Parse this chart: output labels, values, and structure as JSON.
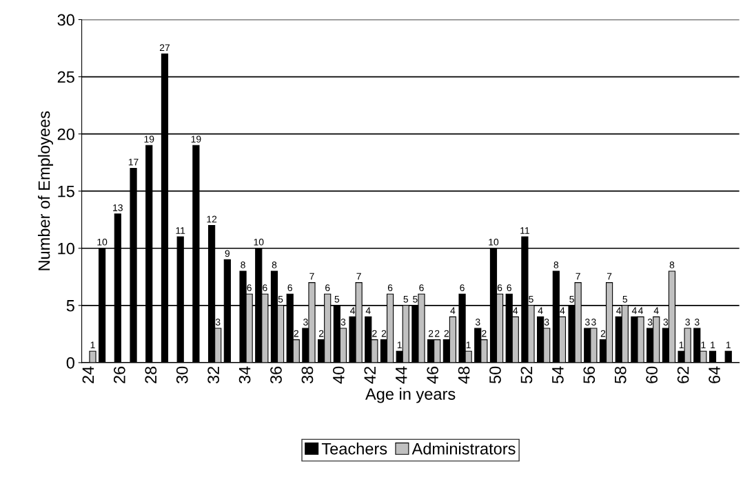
{
  "chart_data": {
    "type": "bar",
    "xlabel": "Age in years",
    "ylabel": "Number of Employees",
    "categories": [
      "24",
      null,
      "26",
      null,
      "28",
      null,
      "30",
      null,
      "32",
      null,
      "34",
      null,
      "36",
      null,
      "38",
      null,
      "40",
      null,
      "42",
      null,
      "44",
      null,
      "46",
      null,
      "48",
      null,
      "50",
      null,
      "52",
      null,
      "54",
      null,
      "56",
      null,
      "58",
      null,
      "60",
      null,
      "62",
      null,
      "64",
      null
    ],
    "series": [
      {
        "name": "Teachers",
        "color": "#000000",
        "values": [
          null,
          10,
          13,
          17,
          19,
          27,
          11,
          19,
          12,
          9,
          8,
          10,
          8,
          6,
          3,
          2,
          5,
          4,
          4,
          2,
          1,
          5,
          2,
          2,
          6,
          3,
          10,
          6,
          11,
          4,
          8,
          5,
          3,
          2,
          4,
          4,
          3,
          3,
          1,
          3,
          1,
          1
        ]
      },
      {
        "name": "Administrators",
        "color": "#c0c0c0",
        "values": [
          1,
          null,
          null,
          null,
          null,
          null,
          null,
          null,
          3,
          null,
          6,
          6,
          5,
          2,
          7,
          6,
          3,
          7,
          2,
          6,
          5,
          6,
          2,
          4,
          1,
          2,
          6,
          4,
          5,
          3,
          4,
          7,
          3,
          7,
          5,
          4,
          4,
          8,
          3,
          1,
          null,
          null
        ]
      }
    ],
    "ylim": [
      0,
      30
    ],
    "yticks": [
      0,
      5,
      10,
      15,
      20,
      25,
      30
    ],
    "grid": "y",
    "legend": "bottom",
    "data_labels": true
  }
}
